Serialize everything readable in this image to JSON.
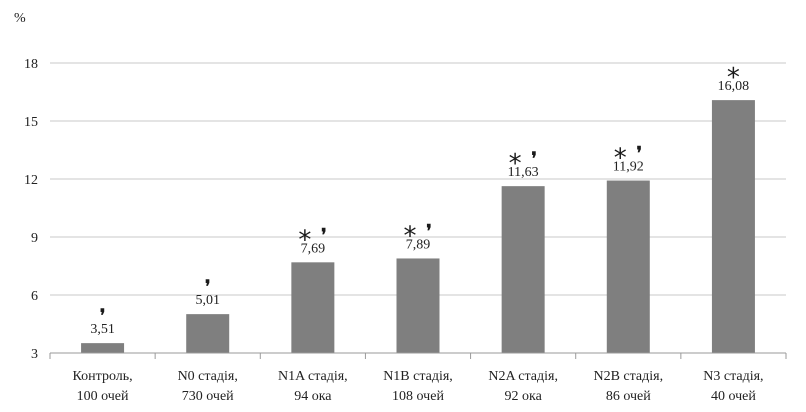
{
  "chart_data": {
    "type": "bar",
    "ylabel": "%",
    "ylim": [
      3,
      18
    ],
    "yticks": [
      3,
      6,
      9,
      12,
      15,
      18
    ],
    "grid": true,
    "bar_color": "#7f7f7f",
    "grid_color": "#c8c8c8",
    "categories": [
      {
        "line1": "Контроль,",
        "line2": "100 очей"
      },
      {
        "line1": "N0 стадія,",
        "line2": "730 очей"
      },
      {
        "line1": "N1A стадія,",
        "line2": "94 ока"
      },
      {
        "line1": "N1B стадія,",
        "line2": "108 очей"
      },
      {
        "line1": "N2A стадія,",
        "line2": "92 ока"
      },
      {
        "line1": "N2B стадія,",
        "line2": "86 очей"
      },
      {
        "line1": "N3 стадія,",
        "line2": "40 очей"
      }
    ],
    "values": [
      3.51,
      5.01,
      7.69,
      7.89,
      11.63,
      11.92,
      16.08
    ],
    "value_labels": [
      "3,51",
      "5,01",
      "7,69",
      "7,89",
      "11,63",
      "11,92",
      "16,08"
    ],
    "markers": [
      {
        "star": "",
        "excl": "❜"
      },
      {
        "star": "",
        "excl": "❜"
      },
      {
        "star": "*",
        "excl": "❜"
      },
      {
        "star": "*",
        "excl": "❜"
      },
      {
        "star": "*",
        "excl": "❜"
      },
      {
        "star": "*",
        "excl": "❜"
      },
      {
        "star": "*",
        "excl": ""
      }
    ]
  }
}
